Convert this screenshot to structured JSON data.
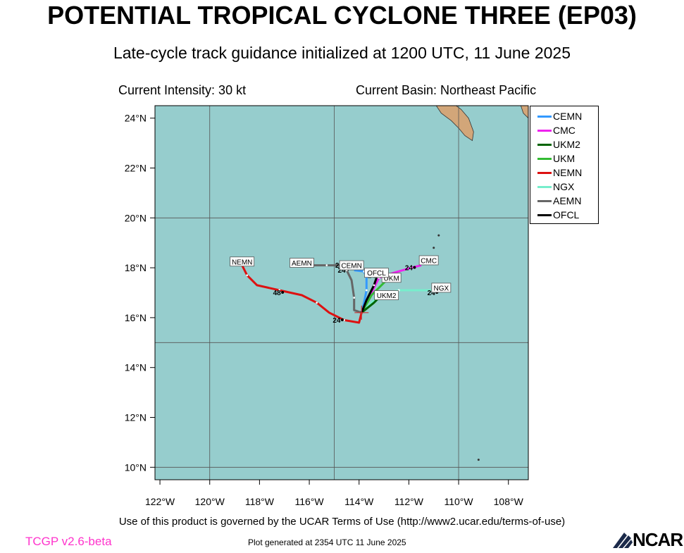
{
  "header": {
    "title": "POTENTIAL TROPICAL CYCLONE THREE (EP03)",
    "subtitle": "Late-cycle track guidance initialized at 1200 UTC, 11 June 2025",
    "intensity": "Current Intensity: 30 kt",
    "basin": "Current Basin: Northeast Pacific"
  },
  "footer": {
    "terms": "Use of this product is governed by the UCAR Terms of Use (http://www2.ucar.edu/terms-of-use)",
    "version": "TCGP v2.6-beta",
    "generated": "Plot generated at 2354 UTC   11 June 2025",
    "logo": "NCAR"
  },
  "colors": {
    "ocean": "#96cdcd",
    "land": "#d2a679",
    "grid": "#555555"
  },
  "map": {
    "lon_range": [
      -122.2,
      -107.2
    ],
    "lat_range": [
      9.5,
      24.5
    ],
    "lon_ticks": [
      -122,
      -120,
      -118,
      -116,
      -114,
      -112,
      -110,
      -108
    ],
    "lon_tick_labels": [
      "122°W",
      "120°W",
      "118°W",
      "116°W",
      "114°W",
      "112°W",
      "110°W",
      "108°W"
    ],
    "lat_ticks": [
      10,
      12,
      14,
      16,
      18,
      20,
      22,
      24
    ],
    "lat_tick_labels": [
      "10°N",
      "12°N",
      "14°N",
      "16°N",
      "18°N",
      "20°N",
      "22°N",
      "24°N"
    ],
    "gridlines_lon": [
      -120,
      -115,
      -110
    ],
    "gridlines_lat": [
      10,
      15,
      20
    ],
    "current_position": {
      "lon": -113.9,
      "lat": 16.2
    }
  },
  "legend": [
    {
      "name": "CEMN",
      "color": "#3399ff"
    },
    {
      "name": "CMC",
      "color": "#ee22ee"
    },
    {
      "name": "UKM2",
      "color": "#006400"
    },
    {
      "name": "UKM",
      "color": "#33bb33"
    },
    {
      "name": "NEMN",
      "color": "#dd1111"
    },
    {
      "name": "NGX",
      "color": "#77eecc"
    },
    {
      "name": "AEMN",
      "color": "#666666"
    },
    {
      "name": "OFCL",
      "color": "#000000"
    }
  ],
  "tracks": [
    {
      "name": "NGX",
      "color": "#77eecc",
      "points": [
        [
          -113.9,
          16.2
        ],
        [
          -113.2,
          16.9
        ],
        [
          -112.4,
          17.1
        ],
        [
          -111.4,
          17.1
        ],
        [
          -110.8,
          17.1
        ]
      ],
      "end_label": {
        "lon": -110.7,
        "lat": 17.2
      },
      "time_labels": [
        {
          "text": "24",
          "lon": -111.1,
          "lat": 16.9
        }
      ]
    },
    {
      "name": "CMC",
      "color": "#ee22ee",
      "points": [
        [
          -113.9,
          16.2
        ],
        [
          -113.6,
          16.8
        ],
        [
          -113.2,
          17.6
        ],
        [
          -112.6,
          17.8
        ],
        [
          -111.9,
          18.0
        ],
        [
          -111.5,
          18.1
        ]
      ],
      "end_label": {
        "lon": -111.2,
        "lat": 18.3
      },
      "time_labels": [
        {
          "text": "24",
          "lon": -112.0,
          "lat": 17.9
        }
      ]
    },
    {
      "name": "UKM",
      "color": "#33bb33",
      "points": [
        [
          -113.9,
          16.2
        ],
        [
          -113.5,
          16.9
        ],
        [
          -112.9,
          17.5
        ]
      ],
      "end_label": {
        "lon": -112.7,
        "lat": 17.6
      },
      "time_labels": []
    },
    {
      "name": "UKM2",
      "color": "#006400",
      "points": [
        [
          -113.9,
          16.2
        ],
        [
          -113.4,
          16.6
        ],
        [
          -113.1,
          16.9
        ]
      ],
      "end_label": {
        "lon": -112.9,
        "lat": 16.9
      },
      "time_labels": []
    },
    {
      "name": "CEMN",
      "color": "#3399ff",
      "points": [
        [
          -113.9,
          16.2
        ],
        [
          -113.8,
          16.6
        ],
        [
          -113.7,
          17.1
        ],
        [
          -113.7,
          17.6
        ],
        [
          -113.8,
          17.85
        ],
        [
          -114.2,
          17.9
        ]
      ],
      "end_label": {
        "lon": -114.3,
        "lat": 18.1
      },
      "time_labels": [
        {
          "text": "24",
          "lon": -114.7,
          "lat": 17.8
        }
      ]
    },
    {
      "name": "AEMN",
      "color": "#666666",
      "points": [
        [
          -113.9,
          16.2
        ],
        [
          -114.2,
          16.3
        ],
        [
          -114.2,
          16.8
        ],
        [
          -114.3,
          17.5
        ],
        [
          -114.5,
          17.9
        ],
        [
          -114.7,
          18.1
        ],
        [
          -115.3,
          18.1
        ],
        [
          -115.9,
          18.1
        ]
      ],
      "end_label": {
        "lon": -116.3,
        "lat": 18.2
      },
      "time_labels": [
        {
          "text": "24",
          "lon": -114.8,
          "lat": 18.0
        }
      ]
    },
    {
      "name": "NEMN",
      "color": "#dd1111",
      "points": [
        [
          -113.9,
          16.2
        ],
        [
          -114.0,
          15.8
        ],
        [
          -114.6,
          15.9
        ],
        [
          -115.2,
          16.2
        ],
        [
          -115.7,
          16.6
        ],
        [
          -116.3,
          16.9
        ],
        [
          -117.2,
          17.1
        ],
        [
          -118.1,
          17.3
        ],
        [
          -118.5,
          17.7
        ],
        [
          -118.7,
          18.1
        ]
      ],
      "end_label": {
        "lon": -118.7,
        "lat": 18.25
      },
      "time_labels": [
        {
          "text": "24",
          "lon": -114.9,
          "lat": 15.8
        },
        {
          "text": "48",
          "lon": -117.3,
          "lat": 16.9
        }
      ]
    },
    {
      "name": "OFCL",
      "color": "#000000",
      "points": [
        [
          -113.9,
          16.2
        ],
        [
          -113.7,
          16.7
        ],
        [
          -113.4,
          17.3
        ],
        [
          -113.3,
          17.6
        ]
      ],
      "end_label": {
        "lon": -113.3,
        "lat": 17.8
      },
      "time_labels": [
        {
          "text": "24",
          "lon": -113.5,
          "lat": 17.6
        }
      ]
    }
  ],
  "small_islands": [
    {
      "lon": -110.8,
      "lat": 19.3
    },
    {
      "lon": -111.0,
      "lat": 18.8
    },
    {
      "lon": -109.2,
      "lat": 10.3
    }
  ]
}
